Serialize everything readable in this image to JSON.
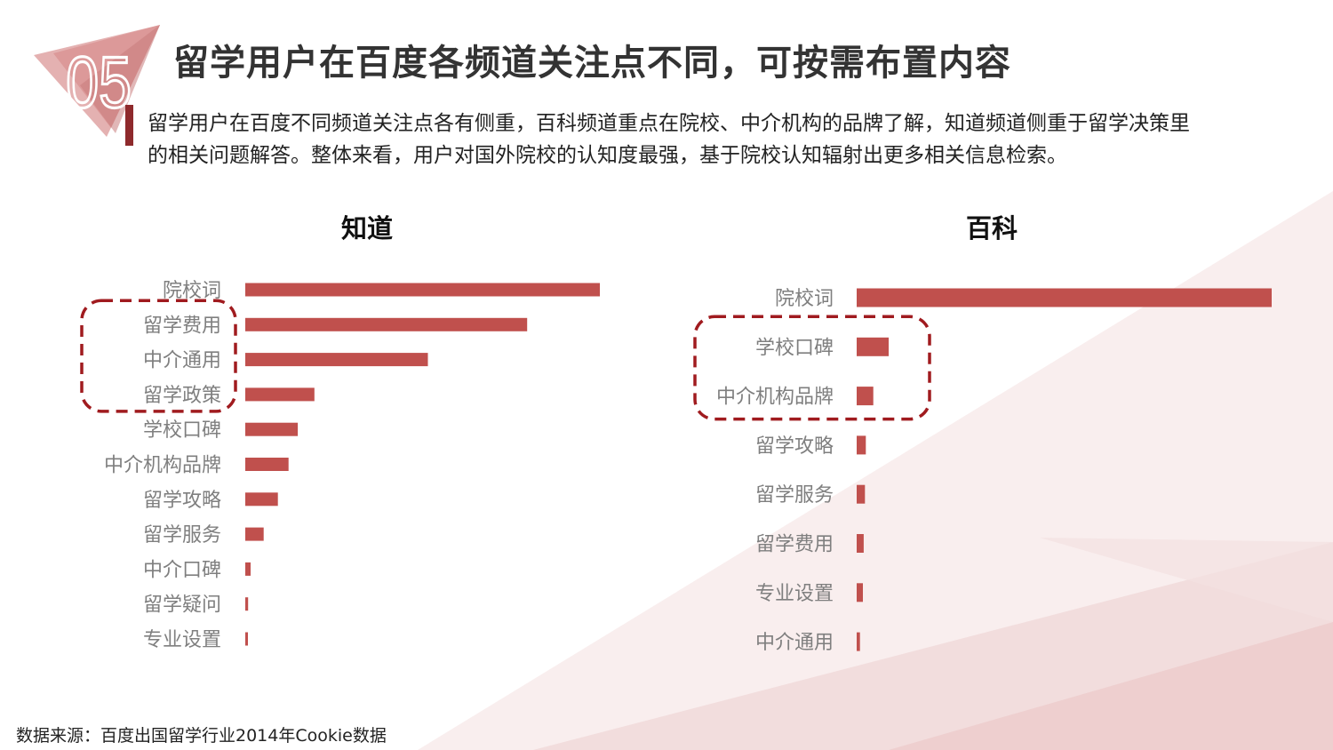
{
  "header": {
    "section_number": "05",
    "title": "留学用户在百度各频道关注点不同，可按需布置内容"
  },
  "description": "留学用户在百度不同频道关注点各有侧重，百科频道重点在院校、中介机构的品牌了解，知道频道侧重于留学决策里的相关问题解答。整体来看，用户对国外院校的认知度最强，基于院校认知辐射出更多相关信息检索。",
  "source_note": "数据来源：百度出国留学行业2014年Cookie数据",
  "colors": {
    "bar": "#c0504d",
    "accent": "#8e2a2c",
    "highlight": "#a01b1f"
  },
  "chart_data": [
    {
      "type": "bar",
      "orientation": "horizontal",
      "title": "知道",
      "categories": [
        "院校词",
        "留学费用",
        "中介通用",
        "留学政策",
        "学校口碑",
        "中介机构品牌",
        "留学攻略",
        "留学服务",
        "中介口碑",
        "留学疑问",
        "专业设置"
      ],
      "values": [
        100,
        79.5,
        51.5,
        19.5,
        14.8,
        12.2,
        9.2,
        5.2,
        1.5,
        0.8,
        0.6
      ],
      "highlighted": [
        "留学费用",
        "中介通用",
        "留学政策"
      ],
      "grid": false,
      "legend": "none"
    },
    {
      "type": "bar",
      "orientation": "horizontal",
      "title": "百科",
      "categories": [
        "院校词",
        "学校口碑",
        "中介机构品牌",
        "留学攻略",
        "留学服务",
        "留学费用",
        "专业设置",
        "中介通用"
      ],
      "values": [
        100,
        7.7,
        4.0,
        2.2,
        2.0,
        1.7,
        1.5,
        0.8
      ],
      "highlighted": [
        "学校口碑",
        "中介机构品牌"
      ],
      "grid": false,
      "legend": "none"
    }
  ]
}
